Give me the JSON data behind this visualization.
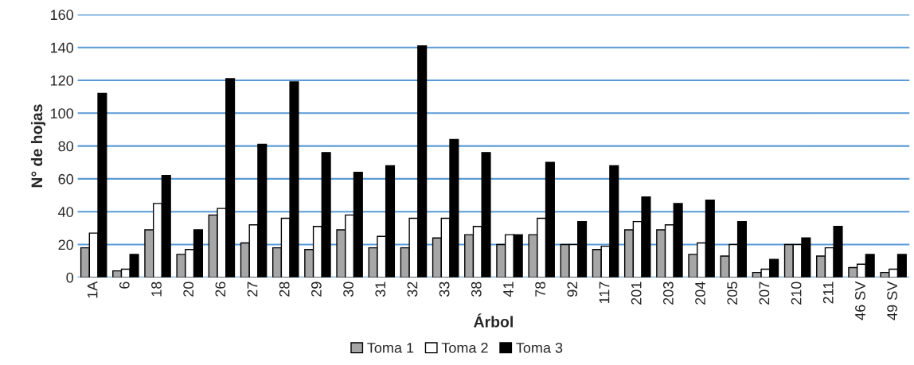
{
  "chart_data": {
    "type": "bar",
    "xlabel": "Árbol",
    "ylabel": "N° de hojas",
    "categories": [
      "1A",
      "6",
      "18",
      "20",
      "26",
      "27",
      "28",
      "29",
      "30",
      "31",
      "32",
      "33",
      "38",
      "41",
      "78",
      "92",
      "117",
      "201",
      "203",
      "204",
      "205",
      "207",
      "210",
      "211",
      "46 SV",
      "49 SV"
    ],
    "series": [
      {
        "name": "Toma 1",
        "color": "#a6a6a6",
        "values": [
          18,
          4,
          29,
          14,
          38,
          21,
          18,
          17,
          29,
          18,
          18,
          24,
          26,
          20,
          26,
          20,
          17,
          29,
          29,
          14,
          13,
          3,
          20,
          13,
          6,
          3
        ]
      },
      {
        "name": "Toma 2",
        "color": "#ffffff",
        "values": [
          27,
          5,
          45,
          17,
          42,
          32,
          36,
          31,
          38,
          25,
          36,
          36,
          31,
          26,
          36,
          20,
          19,
          34,
          32,
          21,
          20,
          5,
          20,
          18,
          8,
          5
        ]
      },
      {
        "name": "Toma 3",
        "color": "#000000",
        "values": [
          112,
          14,
          62,
          29,
          121,
          81,
          119,
          76,
          64,
          68,
          141,
          84,
          76,
          26,
          70,
          34,
          68,
          49,
          45,
          47,
          34,
          11,
          24,
          31,
          14,
          14
        ]
      }
    ],
    "ylim": [
      0,
      160
    ],
    "yticks": [
      0,
      20,
      40,
      60,
      80,
      100,
      120,
      140,
      160
    ],
    "grid": "y",
    "legend": "bottom"
  }
}
